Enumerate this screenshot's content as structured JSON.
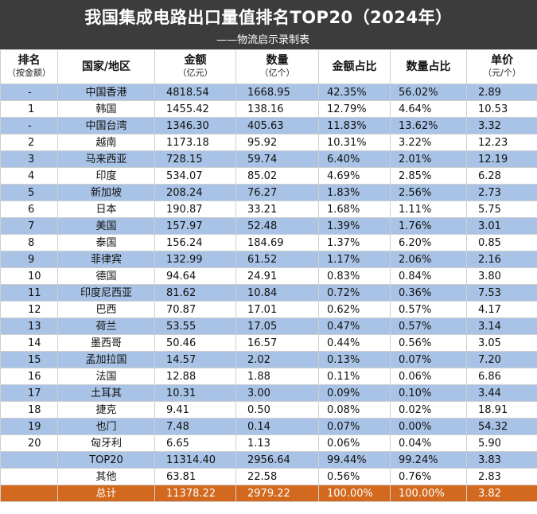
{
  "header": {
    "title": "我国集成电路出口量值排名TOP20（2024年）",
    "subtitle": "——物流启示录制表"
  },
  "columns": [
    {
      "label": "排名",
      "sub": "（按金额）"
    },
    {
      "label": "国家/地区",
      "sub": ""
    },
    {
      "label": "金额",
      "sub": "（亿元）"
    },
    {
      "label": "数量",
      "sub": "（亿个）"
    },
    {
      "label": "金额占比",
      "sub": ""
    },
    {
      "label": "数量占比",
      "sub": ""
    },
    {
      "label": "单价",
      "sub": "（元/个）"
    }
  ],
  "rows": [
    {
      "rank": "-",
      "country": "中国香港",
      "amount": "4818.54",
      "quantity": "1668.95",
      "amount_share": "42.35%",
      "quantity_share": "56.02%",
      "unit_price": "2.89"
    },
    {
      "rank": "1",
      "country": "韩国",
      "amount": "1455.42",
      "quantity": "138.16",
      "amount_share": "12.79%",
      "quantity_share": "4.64%",
      "unit_price": "10.53"
    },
    {
      "rank": "-",
      "country": "中国台湾",
      "amount": "1346.30",
      "quantity": "405.63",
      "amount_share": "11.83%",
      "quantity_share": "13.62%",
      "unit_price": "3.32"
    },
    {
      "rank": "2",
      "country": "越南",
      "amount": "1173.18",
      "quantity": "95.92",
      "amount_share": "10.31%",
      "quantity_share": "3.22%",
      "unit_price": "12.23"
    },
    {
      "rank": "3",
      "country": "马来西亚",
      "amount": "728.15",
      "quantity": "59.74",
      "amount_share": "6.40%",
      "quantity_share": "2.01%",
      "unit_price": "12.19"
    },
    {
      "rank": "4",
      "country": "印度",
      "amount": "534.07",
      "quantity": "85.02",
      "amount_share": "4.69%",
      "quantity_share": "2.85%",
      "unit_price": "6.28"
    },
    {
      "rank": "5",
      "country": "新加坡",
      "amount": "208.24",
      "quantity": "76.27",
      "amount_share": "1.83%",
      "quantity_share": "2.56%",
      "unit_price": "2.73"
    },
    {
      "rank": "6",
      "country": "日本",
      "amount": "190.87",
      "quantity": "33.21",
      "amount_share": "1.68%",
      "quantity_share": "1.11%",
      "unit_price": "5.75"
    },
    {
      "rank": "7",
      "country": "美国",
      "amount": "157.97",
      "quantity": "52.48",
      "amount_share": "1.39%",
      "quantity_share": "1.76%",
      "unit_price": "3.01"
    },
    {
      "rank": "8",
      "country": "泰国",
      "amount": "156.24",
      "quantity": "184.69",
      "amount_share": "1.37%",
      "quantity_share": "6.20%",
      "unit_price": "0.85"
    },
    {
      "rank": "9",
      "country": "菲律宾",
      "amount": "132.99",
      "quantity": "61.52",
      "amount_share": "1.17%",
      "quantity_share": "2.06%",
      "unit_price": "2.16"
    },
    {
      "rank": "10",
      "country": "德国",
      "amount": "94.64",
      "quantity": "24.91",
      "amount_share": "0.83%",
      "quantity_share": "0.84%",
      "unit_price": "3.80"
    },
    {
      "rank": "11",
      "country": "印度尼西亚",
      "amount": "81.62",
      "quantity": "10.84",
      "amount_share": "0.72%",
      "quantity_share": "0.36%",
      "unit_price": "7.53"
    },
    {
      "rank": "12",
      "country": "巴西",
      "amount": "70.87",
      "quantity": "17.01",
      "amount_share": "0.62%",
      "quantity_share": "0.57%",
      "unit_price": "4.17"
    },
    {
      "rank": "13",
      "country": "荷兰",
      "amount": "53.55",
      "quantity": "17.05",
      "amount_share": "0.47%",
      "quantity_share": "0.57%",
      "unit_price": "3.14"
    },
    {
      "rank": "14",
      "country": "墨西哥",
      "amount": "50.46",
      "quantity": "16.57",
      "amount_share": "0.44%",
      "quantity_share": "0.56%",
      "unit_price": "3.05"
    },
    {
      "rank": "15",
      "country": "孟加拉国",
      "amount": "14.57",
      "quantity": "2.02",
      "amount_share": "0.13%",
      "quantity_share": "0.07%",
      "unit_price": "7.20"
    },
    {
      "rank": "16",
      "country": "法国",
      "amount": "12.88",
      "quantity": "1.88",
      "amount_share": "0.11%",
      "quantity_share": "0.06%",
      "unit_price": "6.86"
    },
    {
      "rank": "17",
      "country": "土耳其",
      "amount": "10.31",
      "quantity": "3.00",
      "amount_share": "0.09%",
      "quantity_share": "0.10%",
      "unit_price": "3.44"
    },
    {
      "rank": "18",
      "country": "捷克",
      "amount": "9.41",
      "quantity": "0.50",
      "amount_share": "0.08%",
      "quantity_share": "0.02%",
      "unit_price": "18.91"
    },
    {
      "rank": "19",
      "country": "也门",
      "amount": "7.48",
      "quantity": "0.14",
      "amount_share": "0.07%",
      "quantity_share": "0.00%",
      "unit_price": "54.32"
    },
    {
      "rank": "20",
      "country": "匈牙利",
      "amount": "6.65",
      "quantity": "1.13",
      "amount_share": "0.06%",
      "quantity_share": "0.04%",
      "unit_price": "5.90"
    },
    {
      "rank": "",
      "country": "TOP20",
      "amount": "11314.40",
      "quantity": "2956.64",
      "amount_share": "99.44%",
      "quantity_share": "99.24%",
      "unit_price": "3.83"
    },
    {
      "rank": "",
      "country": "其他",
      "amount": "63.81",
      "quantity": "22.58",
      "amount_share": "0.56%",
      "quantity_share": "0.76%",
      "unit_price": "2.83"
    }
  ],
  "total": {
    "label": "总计",
    "amount": "11378.22",
    "quantity": "2979.22",
    "amount_share": "100.00%",
    "quantity_share": "100.00%",
    "unit_price": "3.82"
  },
  "colors": {
    "header_bg": "#3c3c3c",
    "band_blue": "#a9c3e6",
    "total_orange": "#d2691e"
  }
}
